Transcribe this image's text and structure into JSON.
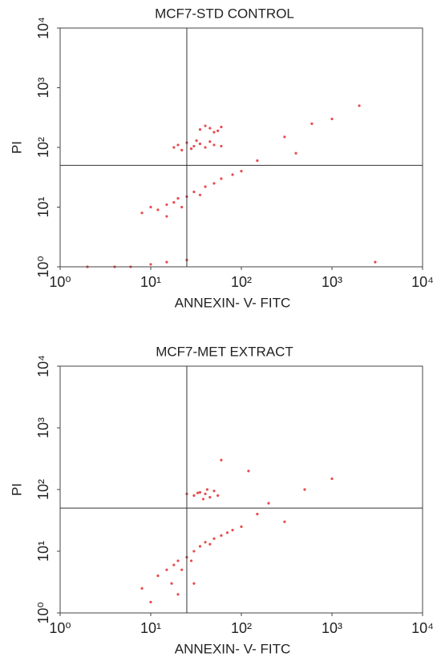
{
  "chart_data": [
    {
      "type": "scatter",
      "title": "MCF7-STD CONTROL",
      "x_label": "ANNEXIN- V- FITC",
      "y_label": "PI",
      "xscale": "log",
      "yscale": "log",
      "xlim": [
        1,
        10000
      ],
      "ylim": [
        1,
        10000
      ],
      "xticks": [
        {
          "value": 1,
          "label": "10⁰"
        },
        {
          "value": 10,
          "label": "10¹"
        },
        {
          "value": 100,
          "label": "10²"
        },
        {
          "value": 1000,
          "label": "10³"
        },
        {
          "value": 10000,
          "label": "10⁴"
        }
      ],
      "yticks": [
        {
          "value": 1,
          "label": "10⁰"
        },
        {
          "value": 10,
          "label": "10¹"
        },
        {
          "value": 100,
          "label": "10²"
        },
        {
          "value": 1000,
          "label": "10³"
        },
        {
          "value": 10000,
          "label": "10⁴"
        }
      ],
      "quadrant": {
        "x": 25,
        "y": 50
      },
      "color": "#e01010",
      "x": [
        20,
        25,
        30,
        35,
        40,
        18,
        28,
        45,
        50,
        60,
        32,
        22,
        35,
        45,
        55,
        40,
        60,
        50,
        8,
        10,
        12,
        15,
        18,
        20,
        25,
        30,
        40,
        50,
        60,
        80,
        100,
        15,
        22,
        35,
        2,
        4,
        6,
        10,
        15,
        25,
        150,
        300,
        600,
        1000,
        2000,
        400,
        3000
      ],
      "y": [
        110,
        120,
        105,
        115,
        100,
        100,
        95,
        125,
        110,
        105,
        130,
        90,
        200,
        210,
        190,
        230,
        220,
        180,
        8,
        10,
        9,
        11,
        12,
        14,
        15,
        18,
        22,
        25,
        30,
        35,
        40,
        7,
        10,
        16,
        1,
        1,
        1,
        1.1,
        1.2,
        1.3,
        60,
        150,
        250,
        300,
        500,
        80,
        1.2
      ]
    },
    {
      "type": "scatter",
      "title": "MCF7-MET EXTRACT",
      "x_label": "ANNEXIN- V- FITC",
      "y_label": "PI",
      "xscale": "log",
      "yscale": "log",
      "xlim": [
        1,
        10000
      ],
      "ylim": [
        1,
        10000
      ],
      "xticks": [
        {
          "value": 1,
          "label": "10⁰"
        },
        {
          "value": 10,
          "label": "10¹"
        },
        {
          "value": 100,
          "label": "10²"
        },
        {
          "value": 1000,
          "label": "10³"
        },
        {
          "value": 10000,
          "label": "10⁴"
        }
      ],
      "yticks": [
        {
          "value": 1,
          "label": "10⁰"
        },
        {
          "value": 10,
          "label": "10¹"
        },
        {
          "value": 100,
          "label": "10²"
        },
        {
          "value": 1000,
          "label": "10³"
        },
        {
          "value": 10000,
          "label": "10⁴"
        }
      ],
      "quadrant": {
        "x": 25,
        "y": 50
      },
      "color": "#e01010",
      "x": [
        30,
        35,
        40,
        45,
        50,
        38,
        25,
        55,
        42,
        33,
        15,
        18,
        20,
        25,
        30,
        35,
        40,
        50,
        60,
        70,
        80,
        100,
        22,
        28,
        45,
        12,
        17,
        20,
        30,
        10,
        8,
        150,
        200,
        500,
        300,
        1000,
        120,
        60
      ],
      "y": [
        80,
        90,
        85,
        75,
        95,
        70,
        85,
        80,
        100,
        88,
        5,
        6,
        7,
        8,
        10,
        12,
        14,
        16,
        18,
        20,
        22,
        25,
        5,
        7,
        13,
        4,
        3,
        2,
        3,
        1.5,
        2.5,
        40,
        60,
        100,
        30,
        150,
        200,
        300
      ]
    }
  ]
}
